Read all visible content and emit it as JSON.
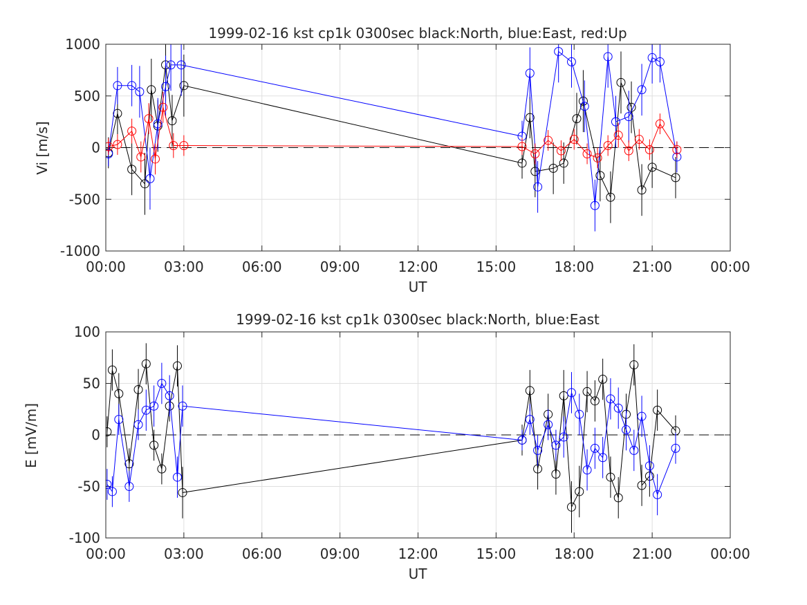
{
  "chart_data": [
    {
      "type": "line",
      "title": "1999-02-16 kst cp1k 0300sec black:North, blue:East, red:Up",
      "xlabel": "UT",
      "ylabel": "Vi [m/s]",
      "xlim": [
        0,
        24
      ],
      "ylim": [
        -1000,
        1000
      ],
      "xtick_labels": [
        "00:00",
        "03:00",
        "06:00",
        "09:00",
        "12:00",
        "15:00",
        "18:00",
        "21:00",
        "00:00"
      ],
      "ytick_values": [
        -1000,
        -500,
        0,
        500,
        1000
      ],
      "ytick_labels": [
        "-1000",
        "-500",
        "0",
        "500",
        "1000"
      ],
      "grid": true,
      "zero_line": true,
      "series": [
        {
          "name": "North",
          "color": "#000000",
          "x": [
            0.1,
            0.45,
            1.0,
            1.5,
            1.75,
            2.0,
            2.3,
            2.55,
            3.0,
            16.0,
            16.3,
            16.5,
            17.2,
            17.6,
            18.1,
            18.35,
            19.0,
            19.4,
            19.8,
            20.2,
            20.6,
            21.0,
            21.9
          ],
          "y": [
            -50,
            330,
            -210,
            -350,
            560,
            210,
            800,
            260,
            600,
            -150,
            290,
            -230,
            -200,
            -150,
            280,
            450,
            -270,
            -480,
            630,
            390,
            -410,
            -190,
            -290
          ],
          "err": [
            150,
            200,
            250,
            300,
            300,
            250,
            350,
            250,
            300,
            150,
            200,
            250,
            250,
            200,
            250,
            300,
            250,
            250,
            300,
            250,
            250,
            200,
            200
          ]
        },
        {
          "name": "East",
          "color": "#0000ff",
          "x": [
            0.1,
            0.45,
            1.0,
            1.3,
            1.7,
            2.0,
            2.3,
            2.5,
            2.9,
            16.0,
            16.3,
            16.6,
            17.4,
            17.9,
            18.4,
            18.8,
            19.3,
            19.6,
            20.1,
            20.6,
            21.0,
            21.3,
            21.95
          ],
          "y": [
            -60,
            600,
            600,
            540,
            -300,
            230,
            590,
            800,
            800,
            110,
            720,
            -380,
            930,
            830,
            400,
            -560,
            880,
            250,
            300,
            560,
            870,
            830,
            -90
          ],
          "err": [
            120,
            180,
            200,
            250,
            300,
            250,
            300,
            250,
            300,
            150,
            250,
            250,
            300,
            250,
            250,
            250,
            300,
            250,
            250,
            250,
            250,
            200,
            150
          ]
        },
        {
          "name": "Up",
          "color": "#ff0000",
          "x": [
            0.1,
            0.45,
            1.0,
            1.35,
            1.65,
            1.9,
            2.2,
            2.6,
            3.0,
            16.0,
            16.5,
            17.0,
            17.5,
            18.0,
            18.5,
            18.9,
            19.3,
            19.7,
            20.1,
            20.5,
            20.9,
            21.3,
            21.95
          ],
          "y": [
            10,
            30,
            160,
            -90,
            280,
            -110,
            390,
            20,
            20,
            10,
            -60,
            70,
            -30,
            80,
            -60,
            -100,
            20,
            120,
            -30,
            80,
            -20,
            230,
            -20
          ],
          "err": [
            80,
            100,
            120,
            150,
            150,
            150,
            150,
            120,
            100,
            80,
            100,
            100,
            100,
            100,
            100,
            100,
            100,
            120,
            100,
            100,
            100,
            100,
            80
          ]
        }
      ]
    },
    {
      "type": "line",
      "title": "1999-02-16 kst cp1k 0300sec black:North, blue:East",
      "xlabel": "UT",
      "ylabel": "E [mV/m]",
      "xlim": [
        0,
        24
      ],
      "ylim": [
        -100,
        100
      ],
      "xtick_labels": [
        "00:00",
        "03:00",
        "06:00",
        "09:00",
        "12:00",
        "15:00",
        "18:00",
        "21:00",
        "00:00"
      ],
      "ytick_values": [
        -100,
        -50,
        0,
        50,
        100
      ],
      "ytick_labels": [
        "-100",
        "-50",
        "0",
        "50",
        "100"
      ],
      "grid": true,
      "zero_line": true,
      "series": [
        {
          "name": "North",
          "color": "#000000",
          "x": [
            0.05,
            0.25,
            0.5,
            0.9,
            1.25,
            1.55,
            1.85,
            2.15,
            2.45,
            2.75,
            2.95,
            16.0,
            16.3,
            16.6,
            17.0,
            17.3,
            17.6,
            17.9,
            18.2,
            18.5,
            18.8,
            19.1,
            19.4,
            19.7,
            20.0,
            20.3,
            20.6,
            20.9,
            21.2,
            21.9
          ],
          "y": [
            3,
            63,
            40,
            -28,
            44,
            69,
            -10,
            -33,
            28,
            67,
            -56,
            -5,
            43,
            -33,
            20,
            -38,
            38,
            -70,
            -55,
            42,
            33,
            54,
            -41,
            -61,
            20,
            68,
            -49,
            -40,
            24,
            4
          ],
          "err": [
            15,
            20,
            20,
            15,
            20,
            20,
            15,
            15,
            15,
            20,
            25,
            15,
            20,
            20,
            20,
            20,
            25,
            25,
            25,
            20,
            20,
            20,
            20,
            20,
            20,
            20,
            20,
            20,
            20,
            15
          ]
        },
        {
          "name": "East",
          "color": "#0000ff",
          "x": [
            0.05,
            0.25,
            0.5,
            0.9,
            1.25,
            1.55,
            1.85,
            2.15,
            2.45,
            2.75,
            2.95,
            16.0,
            16.3,
            16.6,
            17.0,
            17.3,
            17.6,
            17.9,
            18.2,
            18.5,
            18.8,
            19.1,
            19.4,
            19.7,
            20.0,
            20.3,
            20.6,
            20.9,
            21.2,
            21.9
          ],
          "y": [
            -48,
            -55,
            15,
            -50,
            10,
            24,
            28,
            50,
            38,
            -41,
            28,
            -5,
            15,
            -15,
            10,
            -10,
            -2,
            41,
            20,
            -34,
            -13,
            -22,
            35,
            26,
            5,
            -15,
            18,
            -30,
            -58,
            -13
          ],
          "err": [
            15,
            15,
            15,
            15,
            15,
            20,
            20,
            20,
            20,
            20,
            20,
            10,
            15,
            15,
            15,
            15,
            20,
            20,
            20,
            20,
            20,
            20,
            20,
            20,
            20,
            20,
            20,
            20,
            20,
            15
          ]
        }
      ]
    }
  ]
}
